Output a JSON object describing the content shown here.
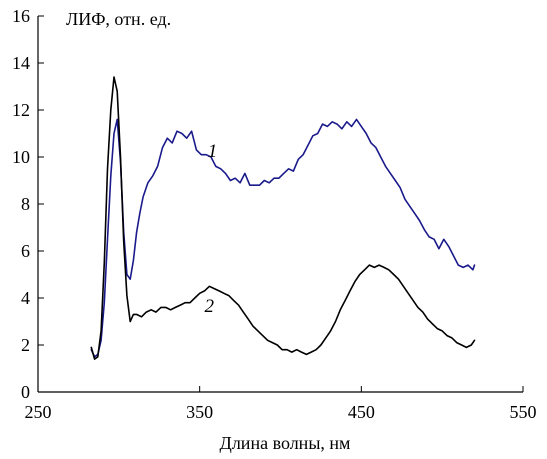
{
  "chart_data": {
    "type": "line",
    "title": "",
    "xlabel": "Длина волны, нм",
    "ylabel": "ЛИФ, отн. ед.",
    "xlim": [
      250,
      550
    ],
    "ylim": [
      0,
      16
    ],
    "x_ticks": [
      250,
      350,
      450,
      550
    ],
    "y_ticks": [
      0,
      2,
      4,
      6,
      8,
      10,
      12,
      14,
      16
    ],
    "grid": false,
    "legend": "none",
    "series": [
      {
        "name": "1",
        "color": "#1a1a8c",
        "x": [
          283,
          285,
          287,
          289,
          291,
          293,
          295,
          297,
          299,
          301,
          303,
          305,
          307,
          309,
          311,
          313,
          315,
          318,
          321,
          324,
          327,
          330,
          333,
          336,
          339,
          342,
          345,
          348,
          351,
          354,
          357,
          360,
          363,
          366,
          369,
          372,
          375,
          378,
          381,
          384,
          387,
          390,
          393,
          396,
          399,
          402,
          405,
          408,
          411,
          414,
          417,
          420,
          423,
          426,
          429,
          432,
          435,
          438,
          441,
          444,
          447,
          450,
          453,
          456,
          459,
          462,
          465,
          468,
          471,
          474,
          477,
          480,
          483,
          486,
          489,
          492,
          495,
          498,
          501,
          504,
          507,
          510,
          513,
          516,
          519,
          520
        ],
        "y": [
          1.8,
          1.5,
          1.6,
          2.2,
          3.8,
          6.5,
          9.2,
          11.0,
          11.6,
          9.8,
          6.8,
          5.0,
          4.8,
          5.6,
          6.8,
          7.6,
          8.3,
          8.9,
          9.2,
          9.6,
          10.4,
          10.8,
          10.6,
          11.1,
          11.0,
          10.8,
          11.1,
          10.3,
          10.1,
          10.1,
          10.0,
          9.6,
          9.5,
          9.3,
          9.0,
          9.1,
          8.9,
          9.3,
          8.8,
          8.8,
          8.8,
          9.0,
          8.9,
          9.1,
          9.1,
          9.3,
          9.5,
          9.4,
          9.9,
          10.1,
          10.5,
          10.9,
          11.0,
          11.4,
          11.3,
          11.5,
          11.4,
          11.2,
          11.5,
          11.3,
          11.6,
          11.3,
          11.0,
          10.6,
          10.4,
          10.0,
          9.6,
          9.3,
          9.0,
          8.7,
          8.2,
          7.9,
          7.6,
          7.3,
          6.9,
          6.6,
          6.5,
          6.1,
          6.5,
          6.2,
          5.8,
          5.4,
          5.3,
          5.4,
          5.2,
          5.4
        ]
      },
      {
        "name": "2",
        "color": "#000000",
        "x": [
          283,
          285,
          287,
          289,
          291,
          293,
          295,
          297,
          299,
          301,
          303,
          305,
          307,
          309,
          311,
          314,
          317,
          320,
          323,
          326,
          329,
          332,
          335,
          338,
          341,
          344,
          347,
          350,
          353,
          356,
          359,
          362,
          365,
          368,
          371,
          374,
          377,
          380,
          383,
          386,
          389,
          392,
          395,
          398,
          401,
          404,
          407,
          410,
          413,
          416,
          419,
          422,
          425,
          428,
          431,
          434,
          437,
          440,
          443,
          446,
          449,
          452,
          455,
          458,
          461,
          464,
          467,
          470,
          473,
          476,
          479,
          482,
          485,
          488,
          491,
          494,
          497,
          500,
          503,
          506,
          509,
          512,
          515,
          518,
          520
        ],
        "y": [
          1.9,
          1.4,
          1.5,
          2.6,
          5.5,
          9.5,
          12.0,
          13.4,
          12.8,
          10.0,
          6.4,
          4.1,
          3.0,
          3.3,
          3.3,
          3.2,
          3.4,
          3.5,
          3.4,
          3.6,
          3.6,
          3.5,
          3.6,
          3.7,
          3.8,
          3.8,
          4.0,
          4.2,
          4.3,
          4.5,
          4.4,
          4.3,
          4.2,
          4.1,
          3.9,
          3.7,
          3.4,
          3.1,
          2.8,
          2.6,
          2.4,
          2.2,
          2.1,
          2.0,
          1.8,
          1.8,
          1.7,
          1.8,
          1.7,
          1.6,
          1.7,
          1.8,
          2.0,
          2.3,
          2.6,
          3.0,
          3.5,
          3.9,
          4.3,
          4.7,
          5.0,
          5.2,
          5.4,
          5.3,
          5.4,
          5.3,
          5.2,
          5.0,
          4.8,
          4.5,
          4.2,
          3.9,
          3.6,
          3.4,
          3.1,
          2.9,
          2.7,
          2.6,
          2.4,
          2.3,
          2.1,
          2.0,
          1.9,
          2.0,
          2.2
        ]
      }
    ],
    "series_labels": [
      {
        "text": "1",
        "x": 355,
        "y": 10.0
      },
      {
        "text": "2",
        "x": 353,
        "y": 3.4
      }
    ]
  }
}
